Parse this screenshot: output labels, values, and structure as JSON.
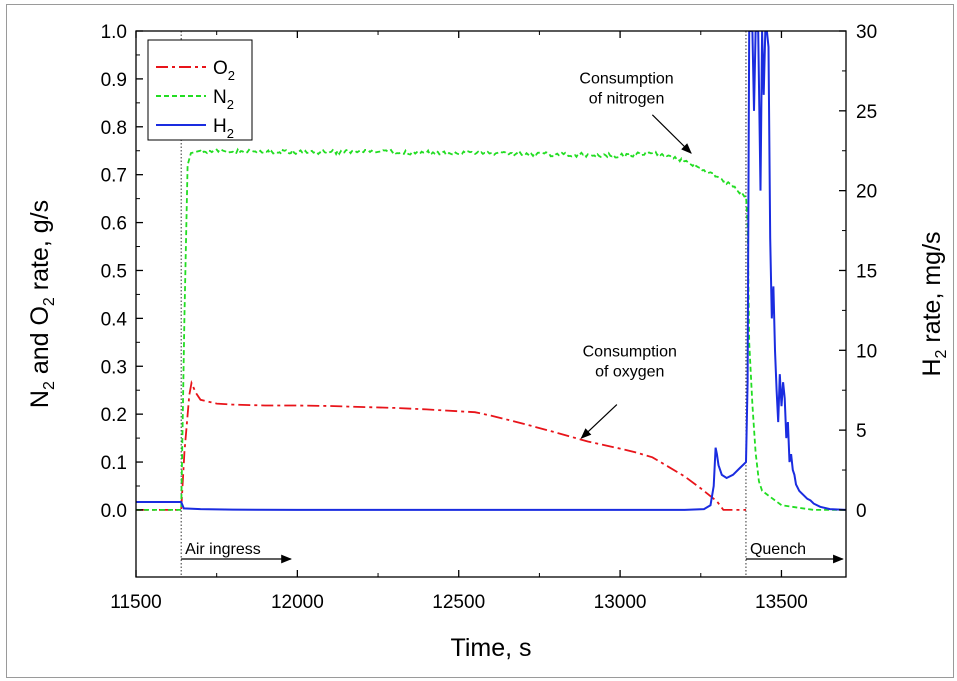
{
  "chart_data": {
    "type": "line",
    "xlabel": "Time, s",
    "ylabel_left": {
      "parts": [
        "N",
        "2",
        " and O",
        "2",
        " rate, g/s"
      ]
    },
    "ylabel_right": {
      "parts": [
        "H",
        "2",
        " rate, mg/s"
      ]
    },
    "xlim": [
      11500,
      13700
    ],
    "ylim_left": [
      -0.14,
      1.0
    ],
    "ylim_right": [
      -4.2,
      30
    ],
    "x_ticks": [
      11500,
      12000,
      12500,
      13000,
      13500
    ],
    "y_ticks_left": [
      "0.0",
      "0.1",
      "0.2",
      "0.3",
      "0.4",
      "0.5",
      "0.6",
      "0.7",
      "0.8",
      "0.9",
      "1.0"
    ],
    "y_ticks_right": [
      "0",
      "5",
      "10",
      "15",
      "20",
      "25",
      "30"
    ],
    "grid": false,
    "legend_position": "top-left",
    "series": [
      {
        "name": "O2",
        "label_main": "O",
        "label_sub": "2",
        "axis": "left",
        "color": "#e8141a",
        "dash": "dashdot",
        "x": [
          11500,
          11640,
          11650,
          11665,
          11672,
          11685,
          11700,
          11750,
          11800,
          11900,
          12000,
          12100,
          12200,
          12300,
          12400,
          12500,
          12550,
          12600,
          12700,
          12800,
          12900,
          13000,
          13050,
          13100,
          13150,
          13200,
          13250,
          13300,
          13320,
          13390
        ],
        "y": [
          0.0,
          0.0,
          0.12,
          0.24,
          0.265,
          0.245,
          0.23,
          0.222,
          0.22,
          0.218,
          0.218,
          0.217,
          0.215,
          0.213,
          0.21,
          0.206,
          0.204,
          0.197,
          0.18,
          0.162,
          0.143,
          0.128,
          0.12,
          0.11,
          0.09,
          0.07,
          0.045,
          0.018,
          0.0,
          0.0
        ]
      },
      {
        "name": "N2",
        "label_main": "N",
        "label_sub": "2",
        "axis": "left",
        "color": "#22dd22",
        "dash": "dashed",
        "x": [
          11500,
          11640,
          11650,
          11660,
          11670,
          11700,
          11800,
          12000,
          12200,
          12400,
          12600,
          12800,
          13000,
          13100,
          13150,
          13200,
          13250,
          13300,
          13350,
          13390,
          13395,
          13400,
          13410,
          13420,
          13430,
          13440,
          13460,
          13480,
          13500,
          13550,
          13600,
          13650,
          13700
        ],
        "y": [
          0.0,
          0.0,
          0.4,
          0.72,
          0.745,
          0.75,
          0.748,
          0.747,
          0.748,
          0.746,
          0.745,
          0.742,
          0.74,
          0.745,
          0.74,
          0.728,
          0.714,
          0.696,
          0.675,
          0.655,
          0.6,
          0.35,
          0.22,
          0.12,
          0.06,
          0.04,
          0.03,
          0.02,
          0.01,
          0.005,
          0.0,
          0.0,
          0.0
        ]
      },
      {
        "name": "H2",
        "label_main": "H",
        "label_sub": "2",
        "axis": "right",
        "color": "#1a2ce0",
        "dash": "solid",
        "x": [
          11500,
          11640,
          11648,
          11700,
          11800,
          12000,
          12500,
          13000,
          13200,
          13260,
          13280,
          13290,
          13296,
          13300,
          13305,
          13315,
          13330,
          13350,
          13370,
          13390,
          13395,
          13400,
          13410,
          13415,
          13420,
          13428,
          13435,
          13440,
          13445,
          13450,
          13455,
          13460,
          13465,
          13470,
          13475,
          13480,
          13485,
          13490,
          13495,
          13500,
          13505,
          13510,
          13515,
          13520,
          13525,
          13530,
          13535,
          13540,
          13545,
          13550,
          13555,
          13560,
          13570,
          13580,
          13590,
          13600,
          13620,
          13650,
          13700
        ],
        "y": [
          0.5,
          0.5,
          0.1,
          0.05,
          0.02,
          0.0,
          0.0,
          0.0,
          0.0,
          0.05,
          0.3,
          1.5,
          3.9,
          3.5,
          2.8,
          2.2,
          2.0,
          2.2,
          2.6,
          3.0,
          8.0,
          30,
          30,
          25,
          30,
          30,
          20,
          30,
          26,
          30,
          30,
          29,
          17,
          12,
          14,
          10,
          7.5,
          5.5,
          8.5,
          6.5,
          8,
          7,
          4.5,
          5.5,
          3.0,
          3.5,
          2.5,
          2.2,
          1.6,
          1.4,
          1.2,
          1.1,
          0.9,
          0.7,
          0.6,
          0.4,
          0.2,
          0.05,
          0.0
        ]
      }
    ],
    "vertical_markers": [
      11640,
      13390
    ],
    "annotations": [
      {
        "id": "air-ingress",
        "text": "Air ingress",
        "kind": "arrow-span",
        "x_start": 11640,
        "x_end": 11980
      },
      {
        "id": "quench",
        "text": "Quench",
        "kind": "arrow-span",
        "x_start": 13390,
        "x_end": 13690
      },
      {
        "id": "consumption-nitrogen",
        "lines": [
          "Consumption",
          "of nitrogen"
        ],
        "kind": "callout",
        "text_x": 13020,
        "text_y": 0.87,
        "arrow_from": [
          13100,
          0.825
        ],
        "arrow_to": [
          13220,
          0.745
        ]
      },
      {
        "id": "consumption-oxygen",
        "lines": [
          "Consumption",
          "of oxygen"
        ],
        "kind": "callout",
        "text_x": 13030,
        "text_y": 0.3,
        "arrow_from": [
          12990,
          0.22
        ],
        "arrow_to": [
          12880,
          0.15
        ]
      }
    ]
  }
}
